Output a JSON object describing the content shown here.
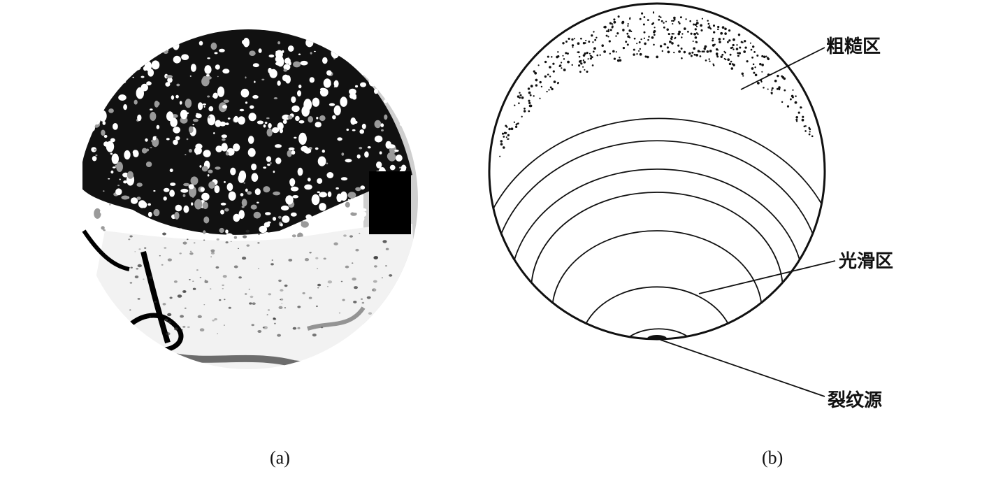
{
  "figure": {
    "panel_a": {
      "caption": "(a)"
    },
    "panel_b": {
      "caption": "(b)",
      "labels": {
        "rough_zone": "粗糙区",
        "smooth_zone": "光滑区",
        "crack_origin": "裂纹源"
      }
    }
  },
  "colors": {
    "ink": "#111111",
    "background": "#ffffff",
    "photo_gray": "#bdbdbd"
  }
}
